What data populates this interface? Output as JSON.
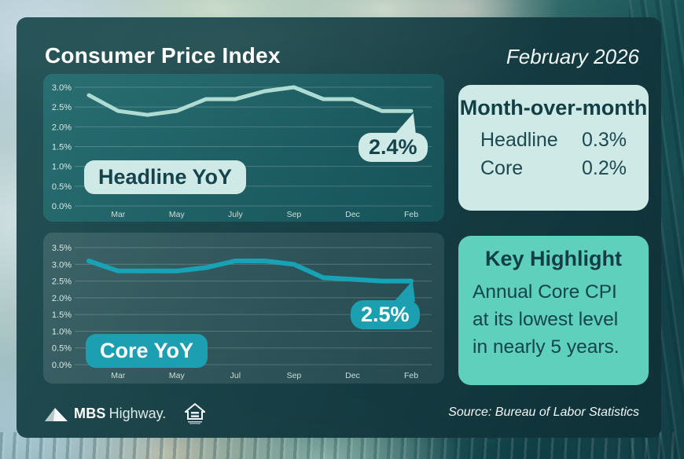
{
  "header": {
    "title": "Consumer Price Index",
    "date": "February 2026"
  },
  "chart_data": [
    {
      "type": "line",
      "title": "Headline YoY",
      "callout": "2.4%",
      "series": [
        {
          "name": "Headline YoY",
          "values": [
            2.8,
            2.4,
            2.3,
            2.4,
            2.7,
            2.7,
            2.9,
            3.0,
            2.7,
            2.7,
            2.4,
            2.4
          ]
        }
      ],
      "x_tick_labels": [
        "Mar",
        "May",
        "July",
        "Sep",
        "Dec",
        "Feb"
      ],
      "x_tick_indices": [
        1,
        3,
        5,
        7,
        9,
        11
      ],
      "ylim": [
        0,
        3.0
      ],
      "yticks": [
        3.0,
        2.5,
        2.0,
        1.5,
        1.0,
        0.5,
        0.0
      ],
      "ytick_labels": [
        "3.0%",
        "2.5%",
        "2.0%",
        "1.5%",
        "1.0%",
        "0.5%",
        "0.0%"
      ],
      "line_color": "#aedbd2",
      "grid": true,
      "legend": "none"
    },
    {
      "type": "line",
      "title": "Core YoY",
      "callout": "2.5%",
      "series": [
        {
          "name": "Core YoY",
          "values": [
            3.1,
            2.8,
            2.8,
            2.8,
            2.9,
            3.1,
            3.1,
            3.0,
            2.6,
            2.55,
            2.5,
            2.5
          ]
        }
      ],
      "x_tick_labels": [
        "Mar",
        "May",
        "Jul",
        "Sep",
        "Dec",
        "Feb"
      ],
      "x_tick_indices": [
        1,
        3,
        5,
        7,
        9,
        11
      ],
      "ylim": [
        0,
        3.5
      ],
      "yticks": [
        3.5,
        3.0,
        2.5,
        2.0,
        1.5,
        1.0,
        0.5,
        0.0
      ],
      "ytick_labels": [
        "3.5%",
        "3.0%",
        "2.5%",
        "2.0%",
        "1.5%",
        "1.0%",
        "0.5%",
        "0.0%"
      ],
      "line_color": "#17a2b5",
      "grid": true,
      "legend": "none"
    }
  ],
  "mom_panel": {
    "title": "Month-over-month",
    "rows": [
      {
        "label": "Headline",
        "value": "0.3%"
      },
      {
        "label": "Core",
        "value": "0.2%"
      }
    ]
  },
  "key_panel": {
    "title": "Key Highlight",
    "body": "Annual Core CPI at its lowest level in nearly 5 years."
  },
  "footer": {
    "brand_bold": "MBS",
    "brand_regular": "Highway.",
    "source": "Source: Bureau of Labor Statistics"
  },
  "colors": {
    "headline_line": "#aedbd2",
    "core_line": "#17a2b5",
    "mint": "#cfe9e6",
    "seafoam": "#5ed0bc",
    "accent_teal": "#1b9fb1",
    "card_teal": "#17444b"
  }
}
